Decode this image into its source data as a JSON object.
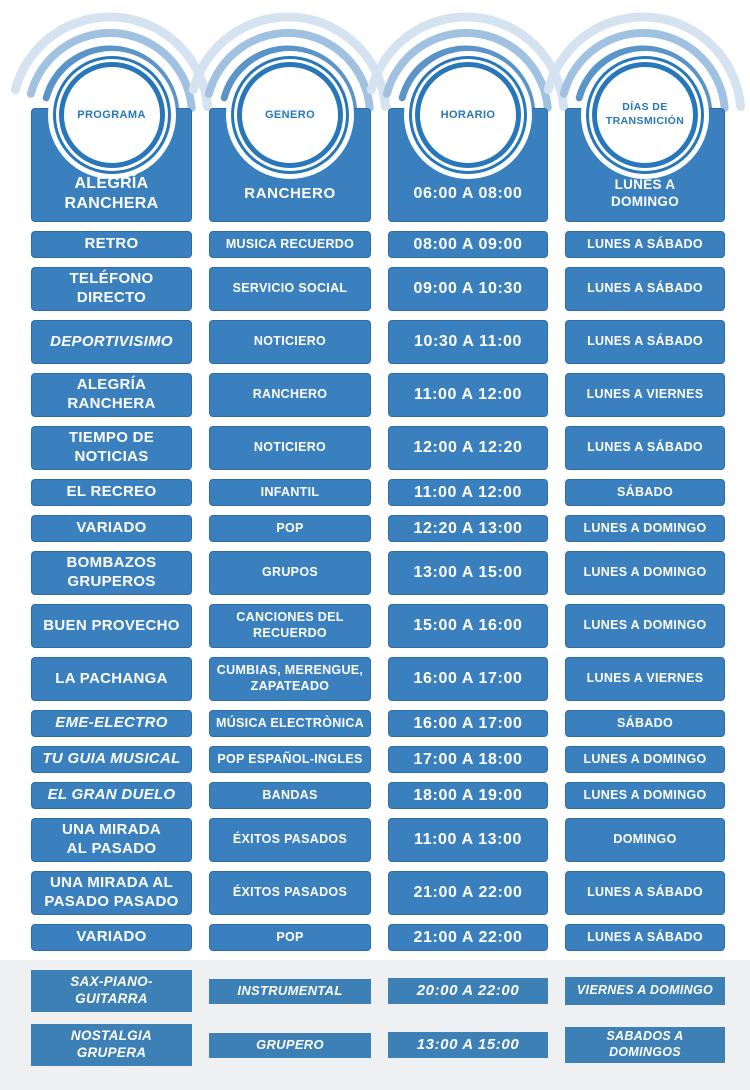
{
  "colors": {
    "box_blue": "#3a80bf",
    "ring_blue": "#2777ba",
    "footer_box_blue": "#3c80b5",
    "footer_background": "#eef0f1",
    "arc_colors": [
      "#d5e3f1",
      "#a0c2e0",
      "#5b94c8"
    ],
    "text_on_blue": "#ffffff"
  },
  "header": {
    "columns": [
      {
        "circle": "PROGRAMA",
        "value": "ALEGRÍA\nRANCHERA"
      },
      {
        "circle": "GENERO",
        "value": "RANCHERO"
      },
      {
        "circle": "HORARIO",
        "value": "06:00 A 08:00"
      },
      {
        "circle": "DÍAS DE\nTRANSMICIÓN",
        "value": "LUNES A\nDOMINGO"
      }
    ]
  },
  "rows": [
    {
      "programa": "RETRO",
      "genero": "MUSICA RECUERDO",
      "horario": "08:00 A 09:00",
      "dias": "LUNES A SÁBADO",
      "tall": false,
      "italic": false
    },
    {
      "programa": "TELÉFONO\nDIRECTO",
      "genero": "SERVICIO SOCIAL",
      "horario": "09:00 A 10:30",
      "dias": "LUNES A SÁBADO",
      "tall": true,
      "italic": false
    },
    {
      "programa": "DEPORTIVISIMO",
      "genero": "NOTICIERO",
      "horario": "10:30 A 11:00",
      "dias": "LUNES A SÁBADO",
      "tall": true,
      "italic": true
    },
    {
      "programa": "ALEGRÍA\nRANCHERA",
      "genero": "RANCHERO",
      "horario": "11:00 A 12:00",
      "dias": "LUNES A VIERNES",
      "tall": true,
      "italic": false
    },
    {
      "programa": "TIEMPO DE\nNOTICIAS",
      "genero": "NOTICIERO",
      "horario": "12:00 A 12:20",
      "dias": "LUNES A SÁBADO",
      "tall": true,
      "italic": false
    },
    {
      "programa": "EL RECREO",
      "genero": "INFANTIL",
      "horario": "11:00 A 12:00",
      "dias": "SÁBADO",
      "tall": false,
      "italic": false
    },
    {
      "programa": "VARIADO",
      "genero": "POP",
      "horario": "12:20 A 13:00",
      "dias": "LUNES A DOMINGO",
      "tall": false,
      "italic": false
    },
    {
      "programa": "BOMBAZOS\nGRUPEROS",
      "genero": "GRUPOS",
      "horario": "13:00 A 15:00",
      "dias": "LUNES A DOMINGO",
      "tall": true,
      "italic": false
    },
    {
      "programa": "BUEN PROVECHO",
      "genero": "CANCIONES DEL\nRECUERDO",
      "horario": "15:00 A 16:00",
      "dias": "LUNES A DOMINGO",
      "tall": true,
      "italic": false
    },
    {
      "programa": "LA PACHANGA",
      "genero": "CUMBIAS, MERENGUE,\nZAPATEADO",
      "horario": "16:00 A 17:00",
      "dias": "LUNES A VIERNES",
      "tall": true,
      "italic": false
    },
    {
      "programa": "EME-ELECTRO",
      "genero": "MÚSICA ELECTRÒNICA",
      "horario": "16:00 A 17:00",
      "dias": "SÁBADO",
      "tall": false,
      "italic": true
    },
    {
      "programa": "TU GUIA MUSICAL",
      "genero": "POP ESPAÑOL-INGLES",
      "horario": "17:00 A 18:00",
      "dias": "LUNES A DOMINGO",
      "tall": false,
      "italic": true
    },
    {
      "programa": "EL GRAN DUELO",
      "genero": "BANDAS",
      "horario": "18:00 A 19:00",
      "dias": "LUNES A DOMINGO",
      "tall": false,
      "italic": true
    },
    {
      "programa": "UNA MIRADA\nAL PASADO",
      "genero": "ÉXITOS PASADOS",
      "horario": "11:00 A 13:00",
      "dias": "DOMINGO",
      "tall": true,
      "italic": false
    },
    {
      "programa": "UNA MIRADA AL\nPASADO PASADO",
      "genero": "ÉXITOS PASADOS",
      "horario": "21:00 A 22:00",
      "dias": "LUNES A SÁBADO",
      "tall": true,
      "italic": false
    },
    {
      "programa": "VARIADO",
      "genero": "POP",
      "horario": "21:00 A 22:00",
      "dias": "LUNES A SÁBADO",
      "tall": false,
      "italic": false
    }
  ],
  "footer_rows": [
    {
      "programa": "SAX-PIANO-\nGUITARRA",
      "genero": "INSTRUMENTAL",
      "horario": "20:00 A 22:00",
      "dias": "VIERNES A DOMINGO"
    },
    {
      "programa": "NOSTALGIA GRUPERA",
      "genero": "GRUPERO",
      "horario": "13:00 A 15:00",
      "dias": "SABADOS A DOMINGOS"
    }
  ]
}
